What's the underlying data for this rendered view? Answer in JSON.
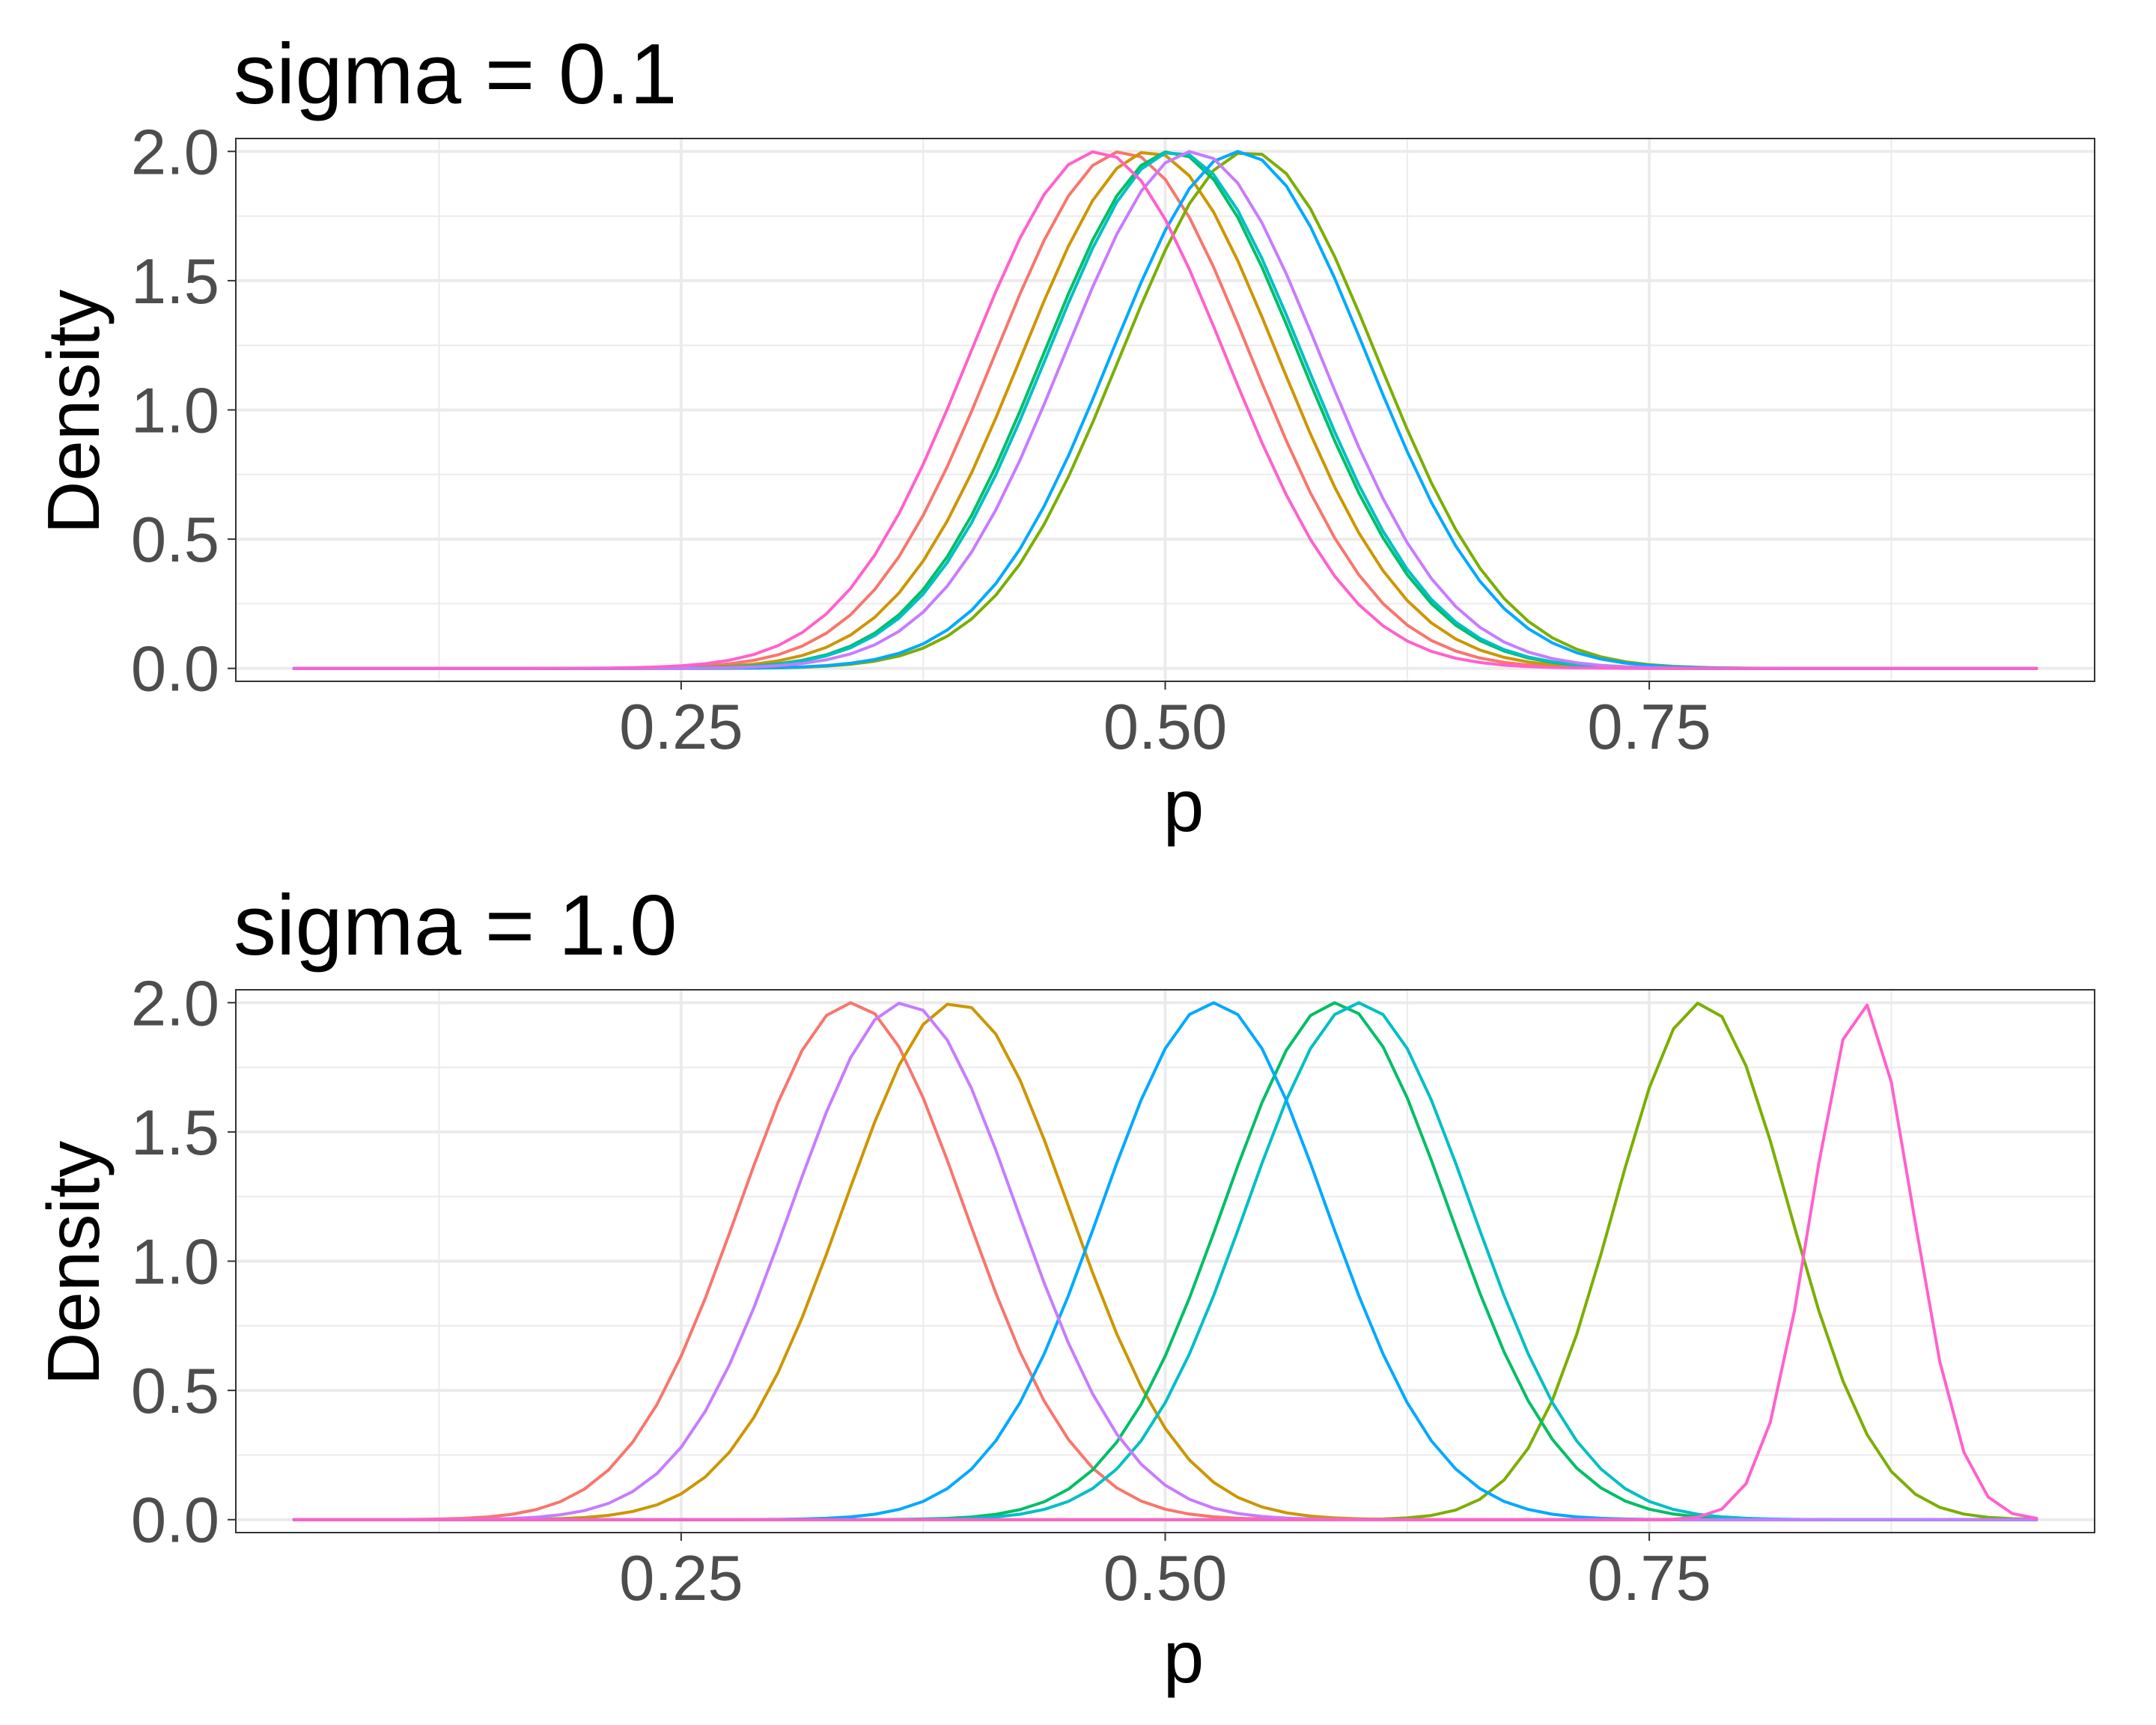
{
  "chart_data": [
    {
      "type": "line",
      "title": "sigma = 0.1",
      "xlabel": "p",
      "ylabel": "Density",
      "xlim": [
        0.02,
        0.98
      ],
      "ylim": [
        -0.05,
        2.05
      ],
      "x_ticks": [
        {
          "value": 0.25,
          "label": "0.25"
        },
        {
          "value": 0.5,
          "label": "0.50"
        },
        {
          "value": 0.75,
          "label": "0.75"
        }
      ],
      "y_ticks": [
        {
          "value": 0.0,
          "label": "0.0"
        },
        {
          "value": 0.5,
          "label": "0.5"
        },
        {
          "value": 1.0,
          "label": "1.0"
        },
        {
          "value": 1.5,
          "label": "1.5"
        },
        {
          "value": 2.0,
          "label": "2.0"
        }
      ],
      "x_minor": [
        0.125,
        0.375,
        0.625,
        0.875
      ],
      "y_minor": [
        0.25,
        0.75,
        1.25,
        1.75
      ],
      "grid": true,
      "legend": "none",
      "curve": {
        "x_start": 0.05,
        "x_end": 0.95,
        "n_points": 73,
        "peak": 2.0
      },
      "series": [
        {
          "color": "#F8766D",
          "peak_p": 0.478,
          "sd": 0.066
        },
        {
          "color": "#CD9600",
          "peak_p": 0.492,
          "sd": 0.066
        },
        {
          "color": "#7CAE00",
          "peak_p": 0.543,
          "sd": 0.066
        },
        {
          "color": "#00BE67",
          "peak_p": 0.503,
          "sd": 0.066
        },
        {
          "color": "#00BFC4",
          "peak_p": 0.505,
          "sd": 0.066
        },
        {
          "color": "#00A9FF",
          "peak_p": 0.538,
          "sd": 0.066
        },
        {
          "color": "#C77CFF",
          "peak_p": 0.514,
          "sd": 0.066
        },
        {
          "color": "#FF61CC",
          "peak_p": 0.465,
          "sd": 0.066
        }
      ]
    },
    {
      "type": "line",
      "title": "sigma = 1.0",
      "xlabel": "p",
      "ylabel": "Density",
      "xlim": [
        0.02,
        0.98
      ],
      "ylim": [
        -0.05,
        2.05
      ],
      "x_ticks": [
        {
          "value": 0.25,
          "label": "0.25"
        },
        {
          "value": 0.5,
          "label": "0.50"
        },
        {
          "value": 0.75,
          "label": "0.75"
        }
      ],
      "y_ticks": [
        {
          "value": 0.0,
          "label": "0.0"
        },
        {
          "value": 0.5,
          "label": "0.5"
        },
        {
          "value": 1.0,
          "label": "1.0"
        },
        {
          "value": 1.5,
          "label": "1.5"
        },
        {
          "value": 2.0,
          "label": "2.0"
        }
      ],
      "x_minor": [
        0.125,
        0.375,
        0.625,
        0.875
      ],
      "y_minor": [
        0.25,
        0.75,
        1.25,
        1.75
      ],
      "grid": true,
      "legend": "none",
      "curve": {
        "x_start": 0.05,
        "x_end": 0.95,
        "n_points": 73,
        "peak": 2.0
      },
      "series": [
        {
          "color": "#F8766D",
          "peak_p": 0.338,
          "sd": 0.058
        },
        {
          "color": "#CD9600",
          "peak_p": 0.392,
          "sd": 0.058
        },
        {
          "color": "#7CAE00",
          "peak_p": 0.777,
          "sd": 0.045
        },
        {
          "color": "#00BE67",
          "peak_p": 0.588,
          "sd": 0.058
        },
        {
          "color": "#00BFC4",
          "peak_p": 0.6,
          "sd": 0.058
        },
        {
          "color": "#00A9FF",
          "peak_p": 0.525,
          "sd": 0.058
        },
        {
          "color": "#C77CFF",
          "peak_p": 0.365,
          "sd": 0.058
        },
        {
          "color": "#FF61CC",
          "peak_p": 0.86,
          "sd": 0.026
        }
      ]
    }
  ]
}
